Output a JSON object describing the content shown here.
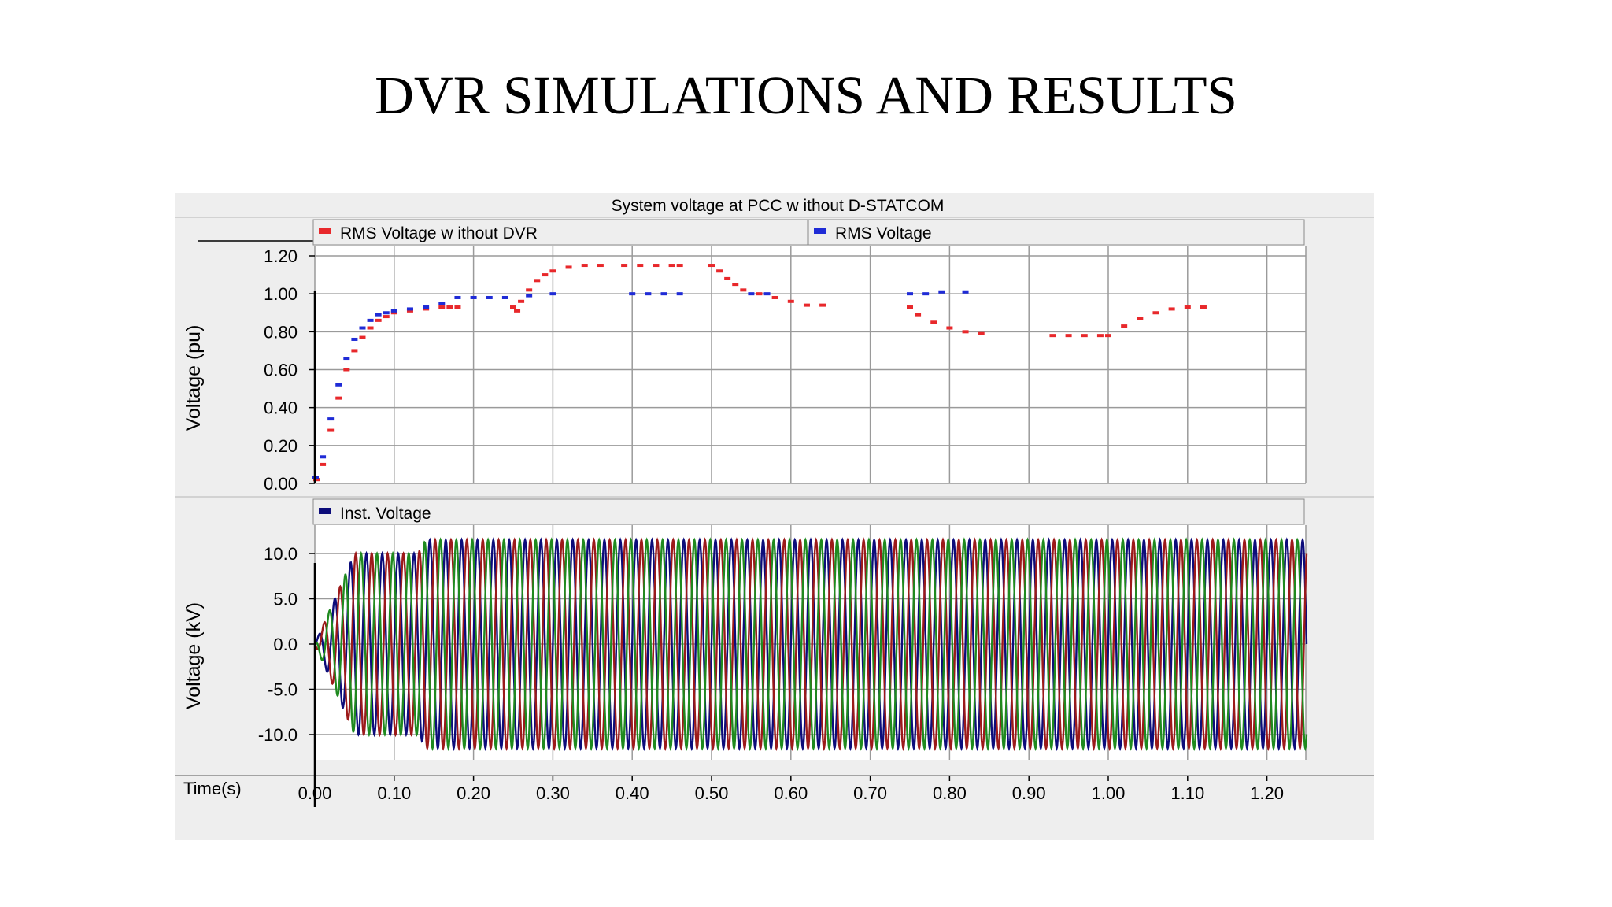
{
  "slide": {
    "title": "DVR SIMULATIONS AND RESULTS"
  },
  "colors": {
    "rms_without_dvr": "#e8282b",
    "rms_voltage": "#1f2bd6",
    "inst_a": "#0c0c7a",
    "inst_b": "#9c1a1a",
    "inst_c": "#1f8a1f",
    "grid": "#9a9a9a",
    "panel_bg": "#eeeeee"
  },
  "chart_data": [
    {
      "type": "scatter",
      "title": "System voltage at PCC w ithout D-STATCOM",
      "ylabel": "Voltage  (pu)",
      "xlabel": "Time(s)",
      "xlim": [
        0.0,
        1.25
      ],
      "ylim": [
        0.0,
        1.2
      ],
      "yticks": [
        "0.00",
        "0.20",
        "0.40",
        "0.60",
        "0.80",
        "1.00",
        "1.20"
      ],
      "grid": true,
      "legend_placement": "top",
      "series": [
        {
          "name": "RMS Voltage w ithout DVR",
          "points": [
            [
              0.002,
              0.02
            ],
            [
              0.01,
              0.1
            ],
            [
              0.02,
              0.28
            ],
            [
              0.03,
              0.45
            ],
            [
              0.04,
              0.6
            ],
            [
              0.05,
              0.7
            ],
            [
              0.06,
              0.77
            ],
            [
              0.07,
              0.82
            ],
            [
              0.08,
              0.86
            ],
            [
              0.09,
              0.88
            ],
            [
              0.1,
              0.9
            ],
            [
              0.12,
              0.91
            ],
            [
              0.14,
              0.92
            ],
            [
              0.16,
              0.93
            ],
            [
              0.17,
              0.93
            ],
            [
              0.18,
              0.93
            ],
            [
              0.25,
              0.93
            ],
            [
              0.255,
              0.91
            ],
            [
              0.26,
              0.96
            ],
            [
              0.27,
              1.02
            ],
            [
              0.28,
              1.07
            ],
            [
              0.29,
              1.1
            ],
            [
              0.3,
              1.12
            ],
            [
              0.32,
              1.14
            ],
            [
              0.34,
              1.15
            ],
            [
              0.36,
              1.15
            ],
            [
              0.39,
              1.15
            ],
            [
              0.41,
              1.15
            ],
            [
              0.43,
              1.15
            ],
            [
              0.45,
              1.15
            ],
            [
              0.46,
              1.15
            ],
            [
              0.5,
              1.15
            ],
            [
              0.51,
              1.12
            ],
            [
              0.52,
              1.08
            ],
            [
              0.53,
              1.05
            ],
            [
              0.54,
              1.02
            ],
            [
              0.56,
              1.0
            ],
            [
              0.58,
              0.98
            ],
            [
              0.6,
              0.96
            ],
            [
              0.62,
              0.94
            ],
            [
              0.64,
              0.94
            ],
            [
              0.75,
              0.93
            ],
            [
              0.76,
              0.89
            ],
            [
              0.78,
              0.85
            ],
            [
              0.8,
              0.82
            ],
            [
              0.82,
              0.8
            ],
            [
              0.84,
              0.79
            ],
            [
              0.93,
              0.78
            ],
            [
              0.95,
              0.78
            ],
            [
              0.97,
              0.78
            ],
            [
              0.99,
              0.78
            ],
            [
              1.0,
              0.78
            ],
            [
              1.02,
              0.83
            ],
            [
              1.04,
              0.87
            ],
            [
              1.06,
              0.9
            ],
            [
              1.08,
              0.92
            ],
            [
              1.1,
              0.93
            ],
            [
              1.12,
              0.93
            ]
          ]
        },
        {
          "name": "RMS Voltage",
          "points": [
            [
              0.001,
              0.03
            ],
            [
              0.01,
              0.14
            ],
            [
              0.02,
              0.34
            ],
            [
              0.03,
              0.52
            ],
            [
              0.04,
              0.66
            ],
            [
              0.05,
              0.76
            ],
            [
              0.06,
              0.82
            ],
            [
              0.07,
              0.86
            ],
            [
              0.08,
              0.89
            ],
            [
              0.09,
              0.9
            ],
            [
              0.1,
              0.91
            ],
            [
              0.12,
              0.92
            ],
            [
              0.14,
              0.93
            ],
            [
              0.16,
              0.95
            ],
            [
              0.18,
              0.98
            ],
            [
              0.2,
              0.98
            ],
            [
              0.22,
              0.98
            ],
            [
              0.24,
              0.98
            ],
            [
              0.27,
              0.99
            ],
            [
              0.3,
              1.0
            ],
            [
              0.4,
              1.0
            ],
            [
              0.42,
              1.0
            ],
            [
              0.44,
              1.0
            ],
            [
              0.46,
              1.0
            ],
            [
              0.55,
              1.0
            ],
            [
              0.57,
              1.0
            ],
            [
              0.75,
              1.0
            ],
            [
              0.77,
              1.0
            ],
            [
              0.79,
              1.01
            ],
            [
              0.82,
              1.01
            ]
          ]
        }
      ]
    },
    {
      "type": "line",
      "ylabel": "Voltage (kV)",
      "xlabel": "Time(s)",
      "xlim": [
        0.0,
        1.25
      ],
      "ylim": [
        -12.5,
        12.5
      ],
      "yticks": [
        "10.0",
        "5.0",
        "0.0",
        "-5.0",
        "-10.0"
      ],
      "xticks": [
        "0.00",
        "0.10",
        "0.20",
        "0.30",
        "0.40",
        "0.50",
        "0.60",
        "0.70",
        "0.80",
        "0.90",
        "1.00",
        "1.10",
        "1.20"
      ],
      "grid": true,
      "legend_placement": "top",
      "series": [
        {
          "name": "Inst. Voltage",
          "frequency_hz": 50,
          "phases": 3,
          "amplitude_kv": [
            [
              0.0,
              0.0
            ],
            [
              0.05,
              10.0
            ],
            [
              0.13,
              10.0
            ],
            [
              0.14,
              11.5
            ],
            [
              1.25,
              11.5
            ]
          ]
        }
      ]
    }
  ]
}
